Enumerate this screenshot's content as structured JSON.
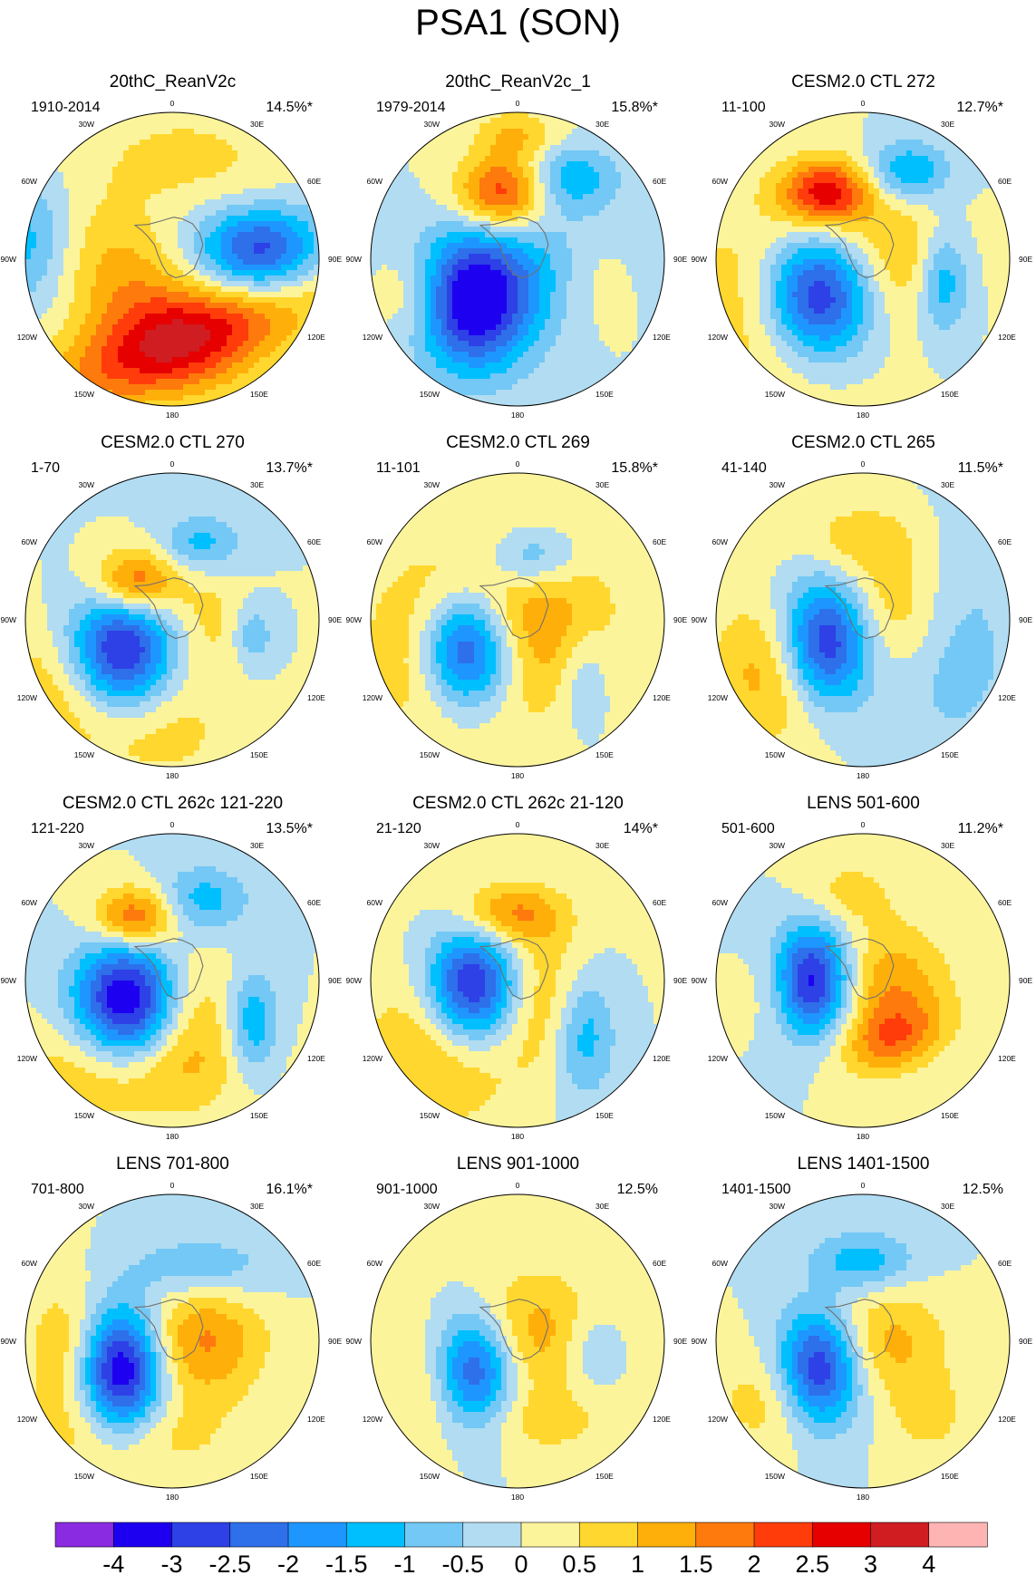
{
  "title": "PSA1 (SON)",
  "colors": {
    "land_outline": "#707070",
    "map_border": "#000000",
    "bins": [
      "#8a2be2",
      "#1e00f0",
      "#2d41e6",
      "#2e6fea",
      "#1e96ff",
      "#00bfff",
      "#73c8f5",
      "#b1dcf1",
      "#fcf49b",
      "#ffd72e",
      "#ffaf0a",
      "#fe7a0c",
      "#ff3c0a",
      "#e60000",
      "#cf1d22",
      "#ffb4b4"
    ]
  },
  "colorbar": {
    "labels": [
      "-4",
      "-3",
      "-2.5",
      "-2",
      "-1.5",
      "-1",
      "-0.5",
      "0",
      "0.5",
      "1",
      "1.5",
      "2",
      "2.5",
      "3",
      "4"
    ]
  },
  "longitude_labels": [
    "0",
    "30E",
    "60E",
    "90E",
    "120E",
    "150E",
    "180",
    "150W",
    "120W",
    "90W",
    "60W",
    "30W"
  ],
  "panels": [
    {
      "title": "20thC_ReanV2c",
      "period": "1910-2014",
      "percent": "14.5%*",
      "pattern": [
        [
          "r",
          -1.0,
          -0.15,
          0.28,
          0.32,
          -1.6
        ],
        [
          "r",
          0.6,
          -0.05,
          0.3,
          0.22,
          -3.0
        ],
        [
          "e",
          0.1,
          0.55,
          0.75,
          0.22,
          -20,
          2.4
        ],
        [
          "e",
          -0.05,
          -0.7,
          0.35,
          0.22,
          -10,
          0.6
        ],
        [
          "e",
          -0.3,
          0.2,
          0.6,
          0.3,
          45,
          1.4
        ],
        [
          "e",
          0.5,
          -0.5,
          0.3,
          0.3,
          0,
          0.4
        ]
      ]
    },
    {
      "title": "20thC_ReanV2c_1",
      "period": "1979-2014",
      "percent": "15.8%*",
      "pattern": [
        [
          "r",
          -0.3,
          0.3,
          0.28,
          0.32,
          -3.5
        ],
        [
          "r",
          -0.1,
          -0.45,
          0.22,
          0.18,
          2.5
        ],
        [
          "r",
          0.35,
          -0.55,
          0.22,
          0.16,
          -1.4
        ],
        [
          "e",
          0.1,
          0.05,
          0.55,
          0.3,
          -10,
          -0.8
        ],
        [
          "e",
          -0.7,
          0.25,
          0.18,
          0.22,
          0,
          1.1
        ],
        [
          "e",
          0.55,
          0.1,
          0.2,
          0.25,
          0,
          0.6
        ],
        [
          "e",
          0.0,
          -0.85,
          0.2,
          0.12,
          0,
          1.0
        ]
      ]
    },
    {
      "title": "CESM2.0 CTL 272",
      "period": "11-100",
      "percent": "12.7%*",
      "pattern": [
        [
          "r",
          -0.3,
          0.25,
          0.27,
          0.3,
          -4.0
        ],
        [
          "r",
          -0.25,
          -0.45,
          0.22,
          0.16,
          2.7
        ],
        [
          "r",
          0.3,
          -0.6,
          0.2,
          0.14,
          -1.6
        ],
        [
          "r",
          0.55,
          0.15,
          0.12,
          0.25,
          -1.6
        ],
        [
          "e",
          -0.55,
          0.3,
          0.45,
          0.45,
          0,
          1.3
        ],
        [
          "e",
          0.2,
          0.0,
          0.3,
          0.3,
          0,
          1.0
        ]
      ]
    },
    {
      "title": "CESM2.0 CTL 270",
      "period": "1-70",
      "percent": "13.7%*",
      "pattern": [
        [
          "r",
          -0.35,
          0.25,
          0.25,
          0.3,
          -3.8
        ],
        [
          "r",
          -0.25,
          -0.25,
          0.2,
          0.16,
          2.3
        ],
        [
          "r",
          0.2,
          -0.52,
          0.2,
          0.14,
          -1.2
        ],
        [
          "r",
          0.55,
          0.1,
          0.1,
          0.15,
          -1.0
        ],
        [
          "e",
          -0.45,
          0.55,
          0.5,
          0.3,
          20,
          1.5
        ],
        [
          "e",
          0.25,
          0.0,
          0.2,
          0.25,
          0,
          0.7
        ]
      ]
    },
    {
      "title": "CESM2.0 CTL 269",
      "period": "11-101",
      "percent": "15.8%*",
      "pattern": [
        [
          "r",
          -0.35,
          0.2,
          0.23,
          0.28,
          -4.0
        ],
        [
          "r",
          0.1,
          -0.42,
          0.22,
          0.16,
          -1.6
        ],
        [
          "r",
          0.45,
          0.4,
          0.12,
          0.25,
          -0.9
        ],
        [
          "e",
          0.05,
          0.0,
          0.4,
          0.45,
          0,
          1.7
        ],
        [
          "e",
          -0.6,
          0.2,
          0.3,
          0.4,
          0,
          1.3
        ]
      ]
    },
    {
      "title": "CESM2.0 CTL 265",
      "period": "41-140",
      "percent": "11.5%*",
      "pattern": [
        [
          "r",
          -0.25,
          0.15,
          0.22,
          0.3,
          -3.6
        ],
        [
          "e",
          -0.6,
          0.35,
          0.3,
          0.35,
          0,
          1.4
        ],
        [
          "e",
          0.2,
          -0.05,
          0.3,
          0.3,
          0,
          1.2
        ],
        [
          "e",
          0.0,
          -0.55,
          0.3,
          0.18,
          0,
          0.8
        ],
        [
          "e",
          0.6,
          0.15,
          0.3,
          0.5,
          0,
          -0.9
        ]
      ]
    },
    {
      "title": "CESM2.0 CTL 262c 121-220",
      "period": "121-220",
      "percent": "13.5%*",
      "pattern": [
        [
          "r",
          -0.3,
          0.15,
          0.25,
          0.3,
          -3.8
        ],
        [
          "r",
          -0.25,
          -0.42,
          0.2,
          0.15,
          2.3
        ],
        [
          "r",
          0.2,
          -0.55,
          0.22,
          0.16,
          -1.3
        ],
        [
          "r",
          0.55,
          0.3,
          0.12,
          0.25,
          -1.5
        ],
        [
          "e",
          -0.3,
          0.6,
          0.5,
          0.25,
          0,
          1.3
        ],
        [
          "e",
          0.1,
          0.2,
          0.22,
          0.3,
          0,
          1.0
        ]
      ]
    },
    {
      "title": "CESM2.0 CTL 262c 21-120",
      "period": "21-120",
      "percent": "14%*",
      "pattern": [
        [
          "r",
          -0.3,
          0.05,
          0.23,
          0.28,
          -3.8
        ],
        [
          "r",
          -0.05,
          -0.45,
          0.25,
          0.15,
          1.6
        ],
        [
          "r",
          0.45,
          0.35,
          0.15,
          0.3,
          -1.5
        ],
        [
          "e",
          -0.5,
          0.4,
          0.35,
          0.4,
          0,
          1.3
        ],
        [
          "e",
          0.15,
          0.1,
          0.25,
          0.35,
          0,
          1.1
        ]
      ]
    },
    {
      "title": "LENS 501-600",
      "period": "501-600",
      "percent": "11.2%*",
      "pattern": [
        [
          "r",
          -0.35,
          0.0,
          0.2,
          0.26,
          -3.6
        ],
        [
          "e",
          0.15,
          0.05,
          0.3,
          0.3,
          0,
          1.5
        ],
        [
          "e",
          0.2,
          0.4,
          0.25,
          0.15,
          -20,
          1.4
        ],
        [
          "e",
          -0.1,
          -0.6,
          0.22,
          0.16,
          0,
          0.7
        ],
        [
          "e",
          -0.6,
          0.05,
          0.15,
          0.22,
          0,
          0.8
        ]
      ]
    },
    {
      "title": "LENS 701-800",
      "period": "701-800",
      "percent": "16.1%*",
      "pattern": [
        [
          "r",
          -0.35,
          0.2,
          0.2,
          0.3,
          -3.8
        ],
        [
          "e",
          0.2,
          0.0,
          0.3,
          0.28,
          0,
          1.6
        ],
        [
          "e",
          0.2,
          -0.5,
          0.35,
          0.16,
          0,
          -1.0
        ],
        [
          "e",
          -0.7,
          0.1,
          0.2,
          0.35,
          0,
          1.1
        ],
        [
          "e",
          -0.25,
          0.65,
          0.45,
          0.2,
          0,
          0.8
        ]
      ]
    },
    {
      "title": "LENS 901-1000",
      "period": "901-1000",
      "percent": "12.5%",
      "pattern": [
        [
          "r",
          -0.3,
          0.2,
          0.2,
          0.28,
          -3.4
        ],
        [
          "e",
          0.1,
          -0.05,
          0.35,
          0.3,
          0,
          1.3
        ],
        [
          "e",
          0.5,
          0.05,
          0.15,
          0.2,
          0,
          -0.8
        ],
        [
          "e",
          -0.5,
          0.3,
          0.3,
          0.3,
          0,
          1.0
        ],
        [
          "e",
          0.2,
          0.55,
          0.3,
          0.15,
          0,
          0.7
        ]
      ]
    },
    {
      "title": "LENS 1401-1500",
      "period": "1401-1500",
      "percent": "12.5%",
      "pattern": [
        [
          "r",
          -0.3,
          0.2,
          0.2,
          0.28,
          -3.5
        ],
        [
          "r",
          0.0,
          -0.55,
          0.25,
          0.14,
          -1.3
        ],
        [
          "e",
          0.15,
          0.0,
          0.3,
          0.25,
          0,
          1.2
        ],
        [
          "e",
          -0.55,
          0.4,
          0.3,
          0.25,
          0,
          1.0
        ],
        [
          "e",
          0.45,
          0.5,
          0.2,
          0.2,
          0,
          0.7
        ]
      ]
    }
  ]
}
